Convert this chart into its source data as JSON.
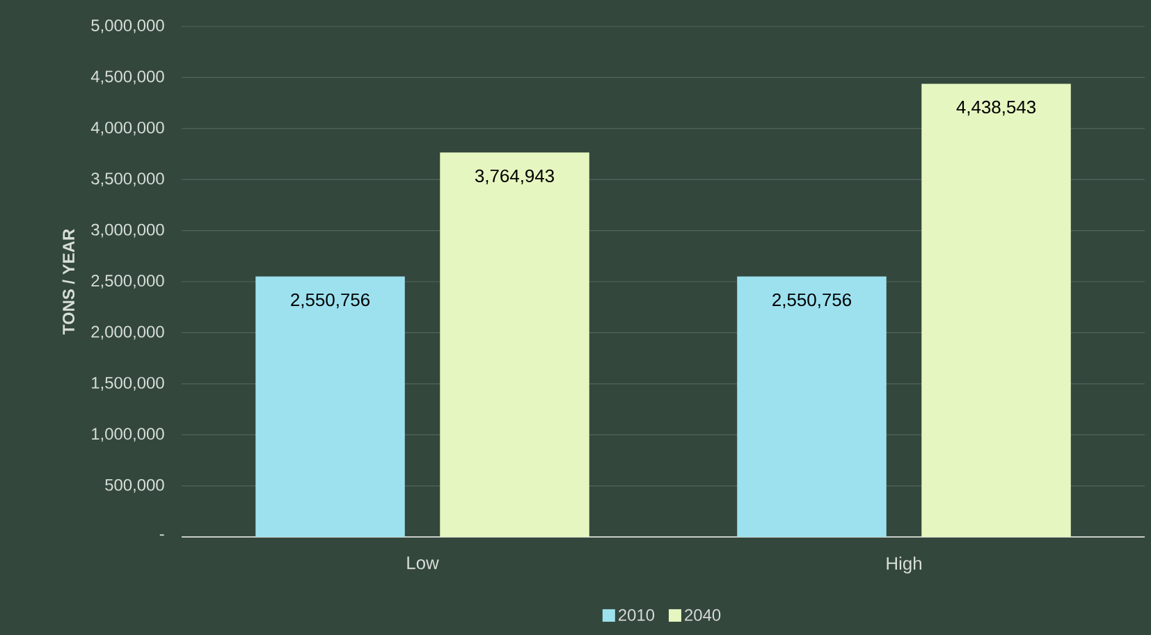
{
  "chart_data": {
    "type": "bar",
    "ylabel": "TONS / YEAR",
    "categories": [
      "Low",
      "High"
    ],
    "series": [
      {
        "name": "2010",
        "color": "#9de1ef",
        "values": [
          2550756,
          2550756
        ],
        "value_labels": [
          "2,550,756",
          "2,550,756"
        ]
      },
      {
        "name": "2040",
        "color": "#e6f6c0",
        "values": [
          3764943,
          4438543
        ],
        "value_labels": [
          "3,764,943",
          "4,438,543"
        ]
      }
    ],
    "ylim": [
      0,
      5000000
    ],
    "yticks": [
      {
        "value": 0,
        "label": "-"
      },
      {
        "value": 500000,
        "label": "500,000"
      },
      {
        "value": 1000000,
        "label": "1,000,000"
      },
      {
        "value": 1500000,
        "label": "1,500,000"
      },
      {
        "value": 2000000,
        "label": "2,000,000"
      },
      {
        "value": 2500000,
        "label": "2,500,000"
      },
      {
        "value": 3000000,
        "label": "3,000,000"
      },
      {
        "value": 3500000,
        "label": "3,500,000"
      },
      {
        "value": 4000000,
        "label": "4,000,000"
      },
      {
        "value": 4500000,
        "label": "4,500,000"
      },
      {
        "value": 5000000,
        "label": "5,000,000"
      }
    ],
    "grid": "y",
    "legend": "bottom"
  }
}
